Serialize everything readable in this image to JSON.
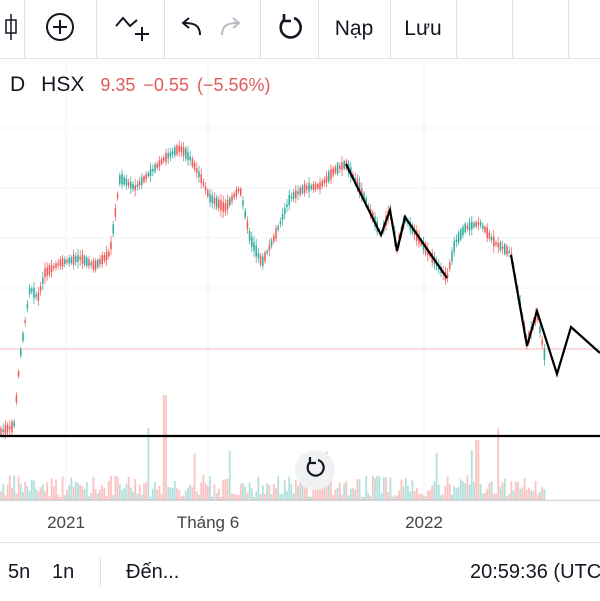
{
  "toolbar": {
    "nap_label": "Nạp",
    "luu_label": "Lưu"
  },
  "legend": {
    "interval": "D",
    "exchange": "HSX",
    "close": "9.35",
    "change": "−0.55",
    "change_pct": "(−5.56%)"
  },
  "xaxis": {
    "ticks": [
      "2021",
      "Tháng 6",
      "2022"
    ]
  },
  "bottombar": {
    "range_5y": "5n",
    "range_1y": "1n",
    "goto_label": "Đến...",
    "clock": "20:59:36 (UTC"
  },
  "colors": {
    "up": "#26a69a",
    "down": "#ef5350",
    "change_text": "#e05a5a",
    "drawing": "#000000"
  },
  "icons": [
    "candles-icon",
    "plus-circle-icon",
    "indicator-icon",
    "undo-icon",
    "redo-icon",
    "reload-icon"
  ],
  "chart_data": {
    "type": "candlestick",
    "close_levels": [
      3.5,
      6.0,
      13.0,
      16.5,
      14.0,
      11.0,
      14.0,
      15.5,
      11.0,
      12.5,
      9.4
    ],
    "current_price": 9.35
  }
}
